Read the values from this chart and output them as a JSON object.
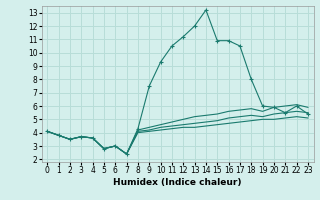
{
  "xlabel": "Humidex (Indice chaleur)",
  "bg_color": "#d4efec",
  "grid_color": "#b8ddd8",
  "line_color": "#1a7a6e",
  "ylim": [
    1.8,
    13.5
  ],
  "xlim": [
    -0.5,
    23.5
  ],
  "yticks": [
    2,
    3,
    4,
    5,
    6,
    7,
    8,
    9,
    10,
    11,
    12,
    13
  ],
  "xticks": [
    0,
    1,
    2,
    3,
    4,
    5,
    6,
    7,
    8,
    9,
    10,
    11,
    12,
    13,
    14,
    15,
    16,
    17,
    18,
    19,
    20,
    21,
    22,
    23
  ],
  "lines": [
    {
      "x": [
        0,
        1,
        2,
        3,
        4,
        5,
        6,
        7,
        8,
        9,
        10,
        11,
        12,
        13,
        14,
        15,
        16,
        17,
        18,
        19,
        20,
        21,
        22,
        23
      ],
      "y": [
        4.1,
        3.8,
        3.5,
        3.7,
        3.6,
        2.8,
        3.0,
        2.4,
        4.0,
        4.1,
        4.2,
        4.3,
        4.4,
        4.4,
        4.5,
        4.6,
        4.7,
        4.8,
        4.9,
        5.0,
        5.0,
        5.1,
        5.2,
        5.1
      ],
      "marker": null
    },
    {
      "x": [
        0,
        1,
        2,
        3,
        4,
        5,
        6,
        7,
        8,
        9,
        10,
        11,
        12,
        13,
        14,
        15,
        16,
        17,
        18,
        19,
        20,
        21,
        22,
        23
      ],
      "y": [
        4.1,
        3.8,
        3.5,
        3.7,
        3.6,
        2.8,
        3.0,
        2.4,
        4.1,
        4.2,
        4.4,
        4.5,
        4.6,
        4.7,
        4.8,
        4.9,
        5.1,
        5.2,
        5.3,
        5.2,
        5.4,
        5.5,
        5.6,
        5.5
      ],
      "marker": null
    },
    {
      "x": [
        0,
        1,
        2,
        3,
        4,
        5,
        6,
        7,
        8,
        9,
        10,
        11,
        12,
        13,
        14,
        15,
        16,
        17,
        18,
        19,
        20,
        21,
        22,
        23
      ],
      "y": [
        4.1,
        3.8,
        3.5,
        3.7,
        3.6,
        2.8,
        3.0,
        2.4,
        4.2,
        4.4,
        4.6,
        4.8,
        5.0,
        5.2,
        5.3,
        5.4,
        5.6,
        5.7,
        5.8,
        5.6,
        5.9,
        6.0,
        6.1,
        5.9
      ],
      "marker": null
    },
    {
      "x": [
        0,
        1,
        2,
        3,
        4,
        5,
        6,
        7,
        8,
        9,
        10,
        11,
        12,
        13,
        14,
        15,
        16,
        17,
        18,
        19,
        20,
        21,
        22,
        23
      ],
      "y": [
        4.1,
        3.8,
        3.5,
        3.7,
        3.6,
        2.8,
        3.0,
        2.4,
        4.3,
        7.5,
        9.3,
        10.5,
        11.2,
        12.0,
        13.2,
        10.9,
        10.9,
        10.5,
        8.0,
        6.0,
        5.9,
        5.5,
        6.0,
        5.4
      ],
      "marker": "+"
    }
  ]
}
